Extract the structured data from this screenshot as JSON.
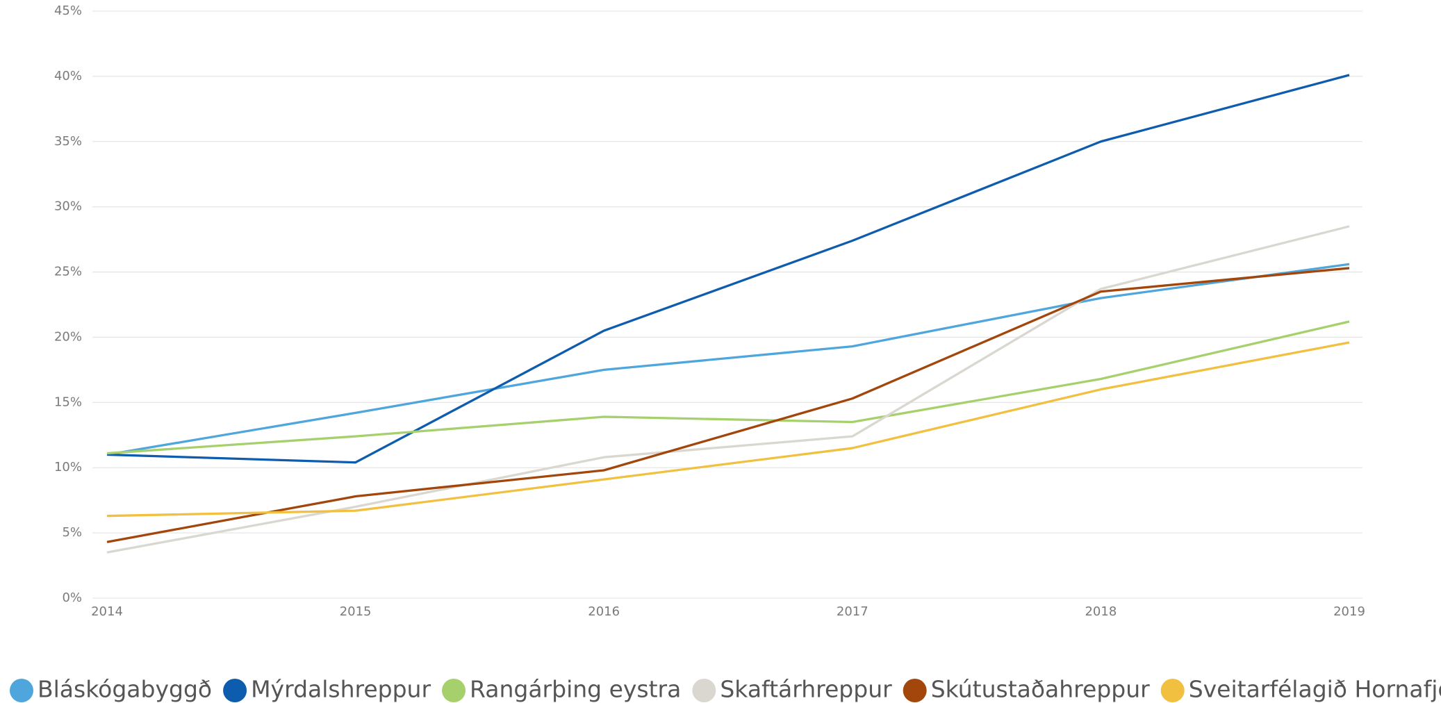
{
  "chart_data": {
    "type": "line",
    "categories": [
      "2014",
      "2015",
      "2016",
      "2017",
      "2018",
      "2019"
    ],
    "series": [
      {
        "name": "Bláskógabyggð",
        "color": "#4ea6dc",
        "values": [
          11.0,
          14.2,
          17.5,
          19.3,
          23.0,
          25.6
        ]
      },
      {
        "name": "Mýrdalshreppur",
        "color": "#0e5cad",
        "values": [
          11.0,
          10.4,
          20.5,
          27.4,
          35.0,
          40.1
        ]
      },
      {
        "name": "Rangárþing eystra",
        "color": "#a6d06c",
        "values": [
          11.1,
          12.4,
          13.9,
          13.5,
          16.8,
          21.2
        ]
      },
      {
        "name": "Skaftárhreppur",
        "color": "#d9d7d0",
        "values": [
          3.5,
          7.0,
          10.8,
          12.4,
          23.7,
          28.5
        ]
      },
      {
        "name": "Skútustaðahreppur",
        "color": "#a2460c",
        "values": [
          4.3,
          7.8,
          9.8,
          15.3,
          23.5,
          25.3
        ]
      },
      {
        "name": "Sveitarfélagið Hornafjörður",
        "color": "#f2c040",
        "values": [
          6.3,
          6.7,
          9.1,
          11.5,
          16.0,
          19.6
        ]
      }
    ],
    "ylim": [
      0,
      45
    ],
    "yticks": [
      {
        "value": 0,
        "label": "0%"
      },
      {
        "value": 5,
        "label": "5%"
      },
      {
        "value": 10,
        "label": "10%"
      },
      {
        "value": 15,
        "label": "15%"
      },
      {
        "value": 20,
        "label": "20%"
      },
      {
        "value": 25,
        "label": "25%"
      },
      {
        "value": 30,
        "label": "30%"
      },
      {
        "value": 35,
        "label": "35%"
      },
      {
        "value": 40,
        "label": "40%"
      },
      {
        "value": 45,
        "label": "45%"
      }
    ],
    "grid": true
  }
}
